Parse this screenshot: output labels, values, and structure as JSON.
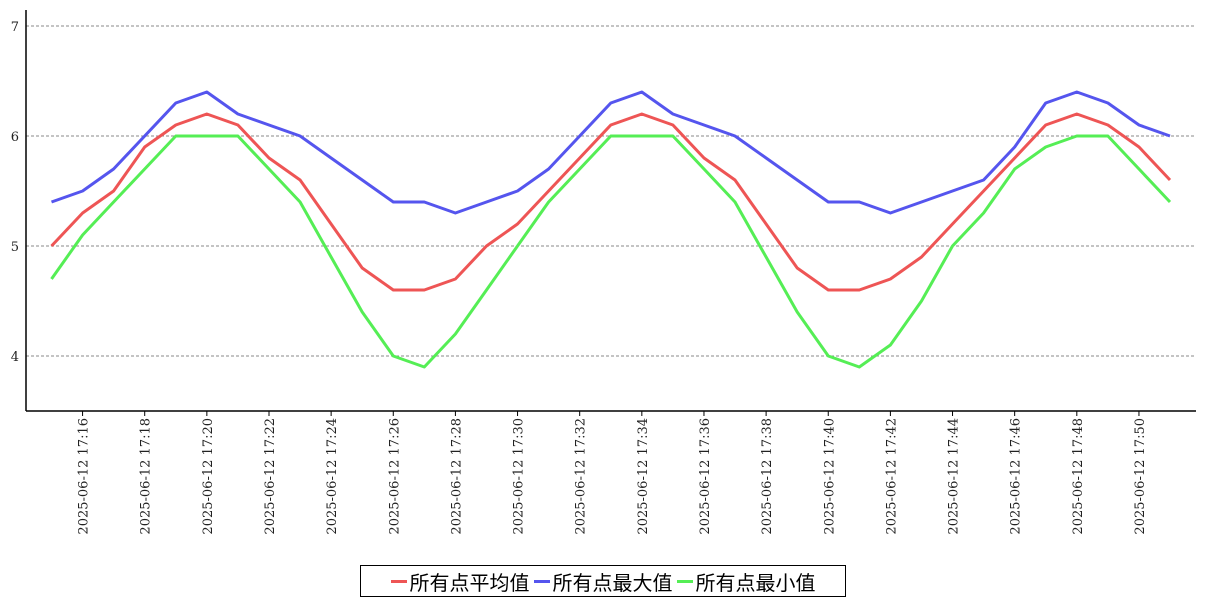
{
  "chart_data": {
    "type": "line",
    "title": "",
    "xlabel": "",
    "ylabel": "",
    "ylim": [
      3.5,
      7.1
    ],
    "yticks": [
      "4",
      "5",
      "6",
      "7"
    ],
    "grid": "horizontal dashed",
    "legend_position": "bottom-center",
    "x": [
      "17:15",
      "17:16",
      "17:17",
      "17:18",
      "17:19",
      "17:20",
      "17:21",
      "17:22",
      "17:23",
      "17:24",
      "17:25",
      "17:26",
      "17:27",
      "17:28",
      "17:29",
      "17:30",
      "17:31",
      "17:32",
      "17:33",
      "17:34",
      "17:35",
      "17:36",
      "17:37",
      "17:38",
      "17:39",
      "17:40",
      "17:41",
      "17:42",
      "17:43",
      "17:44",
      "17:45",
      "17:46",
      "17:47",
      "17:48",
      "17:49",
      "17:50",
      "17:51"
    ],
    "xtick_labels": [
      "2025-06-12 17:16",
      "2025-06-12 17:18",
      "2025-06-12 17:20",
      "2025-06-12 17:22",
      "2025-06-12 17:24",
      "2025-06-12 17:26",
      "2025-06-12 17:28",
      "2025-06-12 17:30",
      "2025-06-12 17:32",
      "2025-06-12 17:34",
      "2025-06-12 17:36",
      "2025-06-12 17:38",
      "2025-06-12 17:40",
      "2025-06-12 17:42",
      "2025-06-12 17:44",
      "2025-06-12 17:46",
      "2025-06-12 17:48",
      "2025-06-12 17:50"
    ],
    "series": [
      {
        "name": "所有点平均值",
        "color": "#ee5555",
        "values": [
          5.0,
          5.3,
          5.5,
          5.9,
          6.1,
          6.2,
          6.1,
          5.8,
          5.6,
          5.2,
          4.8,
          4.6,
          4.6,
          4.7,
          5.0,
          5.2,
          5.5,
          5.8,
          6.1,
          6.2,
          6.1,
          5.8,
          5.6,
          5.2,
          4.8,
          4.6,
          4.6,
          4.7,
          4.9,
          5.2,
          5.5,
          5.8,
          6.1,
          6.2,
          6.1,
          5.9,
          5.6
        ]
      },
      {
        "name": "所有点最大值",
        "color": "#5555ee",
        "values": [
          5.4,
          5.5,
          5.7,
          6.0,
          6.3,
          6.4,
          6.2,
          6.1,
          6.0,
          5.8,
          5.6,
          5.4,
          5.4,
          5.3,
          5.4,
          5.5,
          5.7,
          6.0,
          6.3,
          6.4,
          6.2,
          6.1,
          6.0,
          5.8,
          5.6,
          5.4,
          5.4,
          5.3,
          5.4,
          5.5,
          5.6,
          5.9,
          6.3,
          6.4,
          6.3,
          6.1,
          6.0
        ]
      },
      {
        "name": "所有点最小值",
        "color": "#55ee55",
        "values": [
          4.7,
          5.1,
          5.4,
          5.7,
          6.0,
          6.0,
          6.0,
          5.7,
          5.4,
          4.9,
          4.4,
          4.0,
          3.9,
          4.2,
          4.6,
          5.0,
          5.4,
          5.7,
          6.0,
          6.0,
          6.0,
          5.7,
          5.4,
          4.9,
          4.4,
          4.0,
          3.9,
          4.1,
          4.5,
          5.0,
          5.3,
          5.7,
          5.9,
          6.0,
          6.0,
          5.7,
          5.4
        ]
      }
    ]
  }
}
